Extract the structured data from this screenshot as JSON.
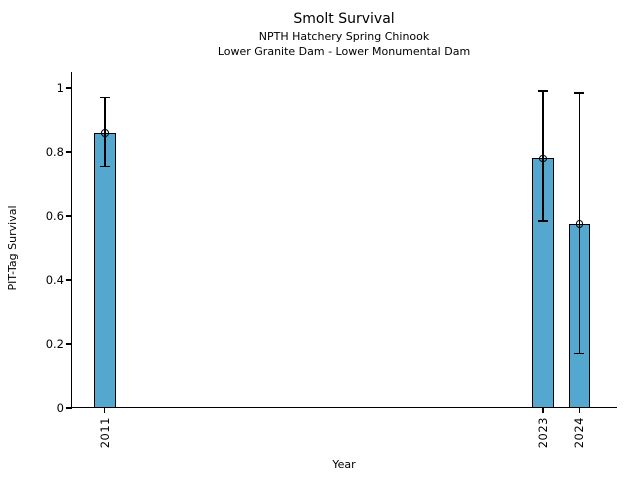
{
  "chart_data": {
    "type": "bar",
    "title": "Smolt Survival",
    "subtitle1": "NPTH Hatchery Spring Chinook",
    "subtitle2": "Lower Granite Dam - Lower Monumental Dam",
    "xlabel": "Year",
    "ylabel": "PIT-Tag Survival",
    "x": [
      2011,
      2023,
      2024
    ],
    "xtick_labels": [
      "2011",
      "2023",
      "2024"
    ],
    "values": [
      0.86,
      0.78,
      0.575
    ],
    "error_low": [
      0.755,
      0.585,
      0.17
    ],
    "error_high": [
      0.97,
      0.99,
      0.985
    ],
    "yticks": [
      0,
      0.2,
      0.4,
      0.6,
      0.8,
      1
    ],
    "ytick_labels": [
      "0",
      "0.2",
      "0.4",
      "0.6",
      "0.8",
      "1"
    ],
    "xlim": [
      2010.1,
      2025.0
    ],
    "ylim": [
      0,
      1.05
    ],
    "bar_width_years": 0.6,
    "bar_color": "#54A7CE",
    "bar_edge_color": "#000000",
    "error_color": "#000000",
    "marker": "open-circle",
    "grid": false,
    "legend": null,
    "background_color": "#ffffff"
  }
}
